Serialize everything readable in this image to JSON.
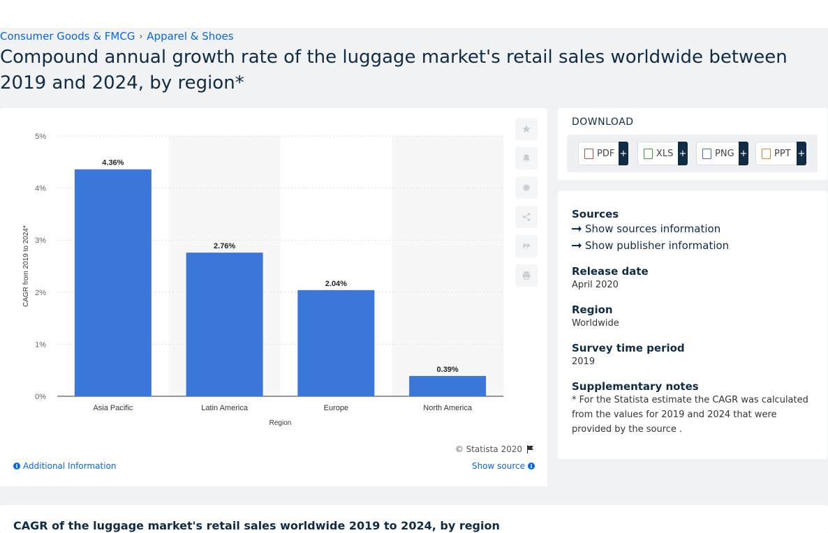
{
  "breadcrumb": {
    "items": [
      "Consumer Goods & FMCG",
      "Apparel & Shoes"
    ],
    "separator": "›"
  },
  "page_title": "Compound annual growth rate of the luggage market's retail sales worldwide between 2019 and 2024, by region*",
  "chart_data": {
    "type": "bar",
    "categories": [
      "Asia Pacific",
      "Latin America",
      "Europe",
      "North America"
    ],
    "values": [
      4.36,
      2.76,
      2.04,
      0.39
    ],
    "value_labels": [
      "4.36%",
      "2.76%",
      "2.04%",
      "0.39%"
    ],
    "title": "",
    "xlabel": "Region",
    "ylabel": "CAGR from 2019 to 2024*",
    "ylim": [
      0,
      5
    ],
    "yticks": [
      "0%",
      "1%",
      "2%",
      "3%",
      "4%",
      "5%"
    ],
    "grid": true,
    "colors": {
      "bar": "#3a77d8",
      "band": "#f7f7f7",
      "grid": "#dddddd"
    }
  },
  "chart_footer": {
    "copyright": "© Statista 2020",
    "additional_info": "Additional Information",
    "show_source": "Show source"
  },
  "sidebar_icons": [
    "star-icon",
    "bell-icon",
    "gear-icon",
    "share-icon",
    "quote-icon",
    "print-icon"
  ],
  "download": {
    "heading": "DOWNLOAD",
    "buttons": [
      {
        "label": "PDF",
        "plus": "+",
        "icon_color": "#d64040"
      },
      {
        "label": "XLS",
        "plus": "+",
        "icon_color": "#3a9a3a"
      },
      {
        "label": "PNG",
        "plus": "+",
        "icon_color": "#3a6fb0"
      },
      {
        "label": "PPT",
        "plus": "+",
        "icon_color": "#e08030"
      }
    ]
  },
  "info": {
    "sources_heading": "Sources",
    "show_sources": "Show sources information",
    "show_publisher": "Show publisher information",
    "release_heading": "Release date",
    "release_value": "April 2020",
    "region_heading": "Region",
    "region_value": "Worldwide",
    "survey_heading": "Survey time period",
    "survey_value": "2019",
    "notes_heading": "Supplementary notes",
    "notes_value": "* For the Statista estimate the CAGR was calculated from the values for 2019 and 2024 that were provided by the source ."
  },
  "bottom_title": "CAGR of the luggage market's retail sales worldwide 2019 to 2024, by region"
}
